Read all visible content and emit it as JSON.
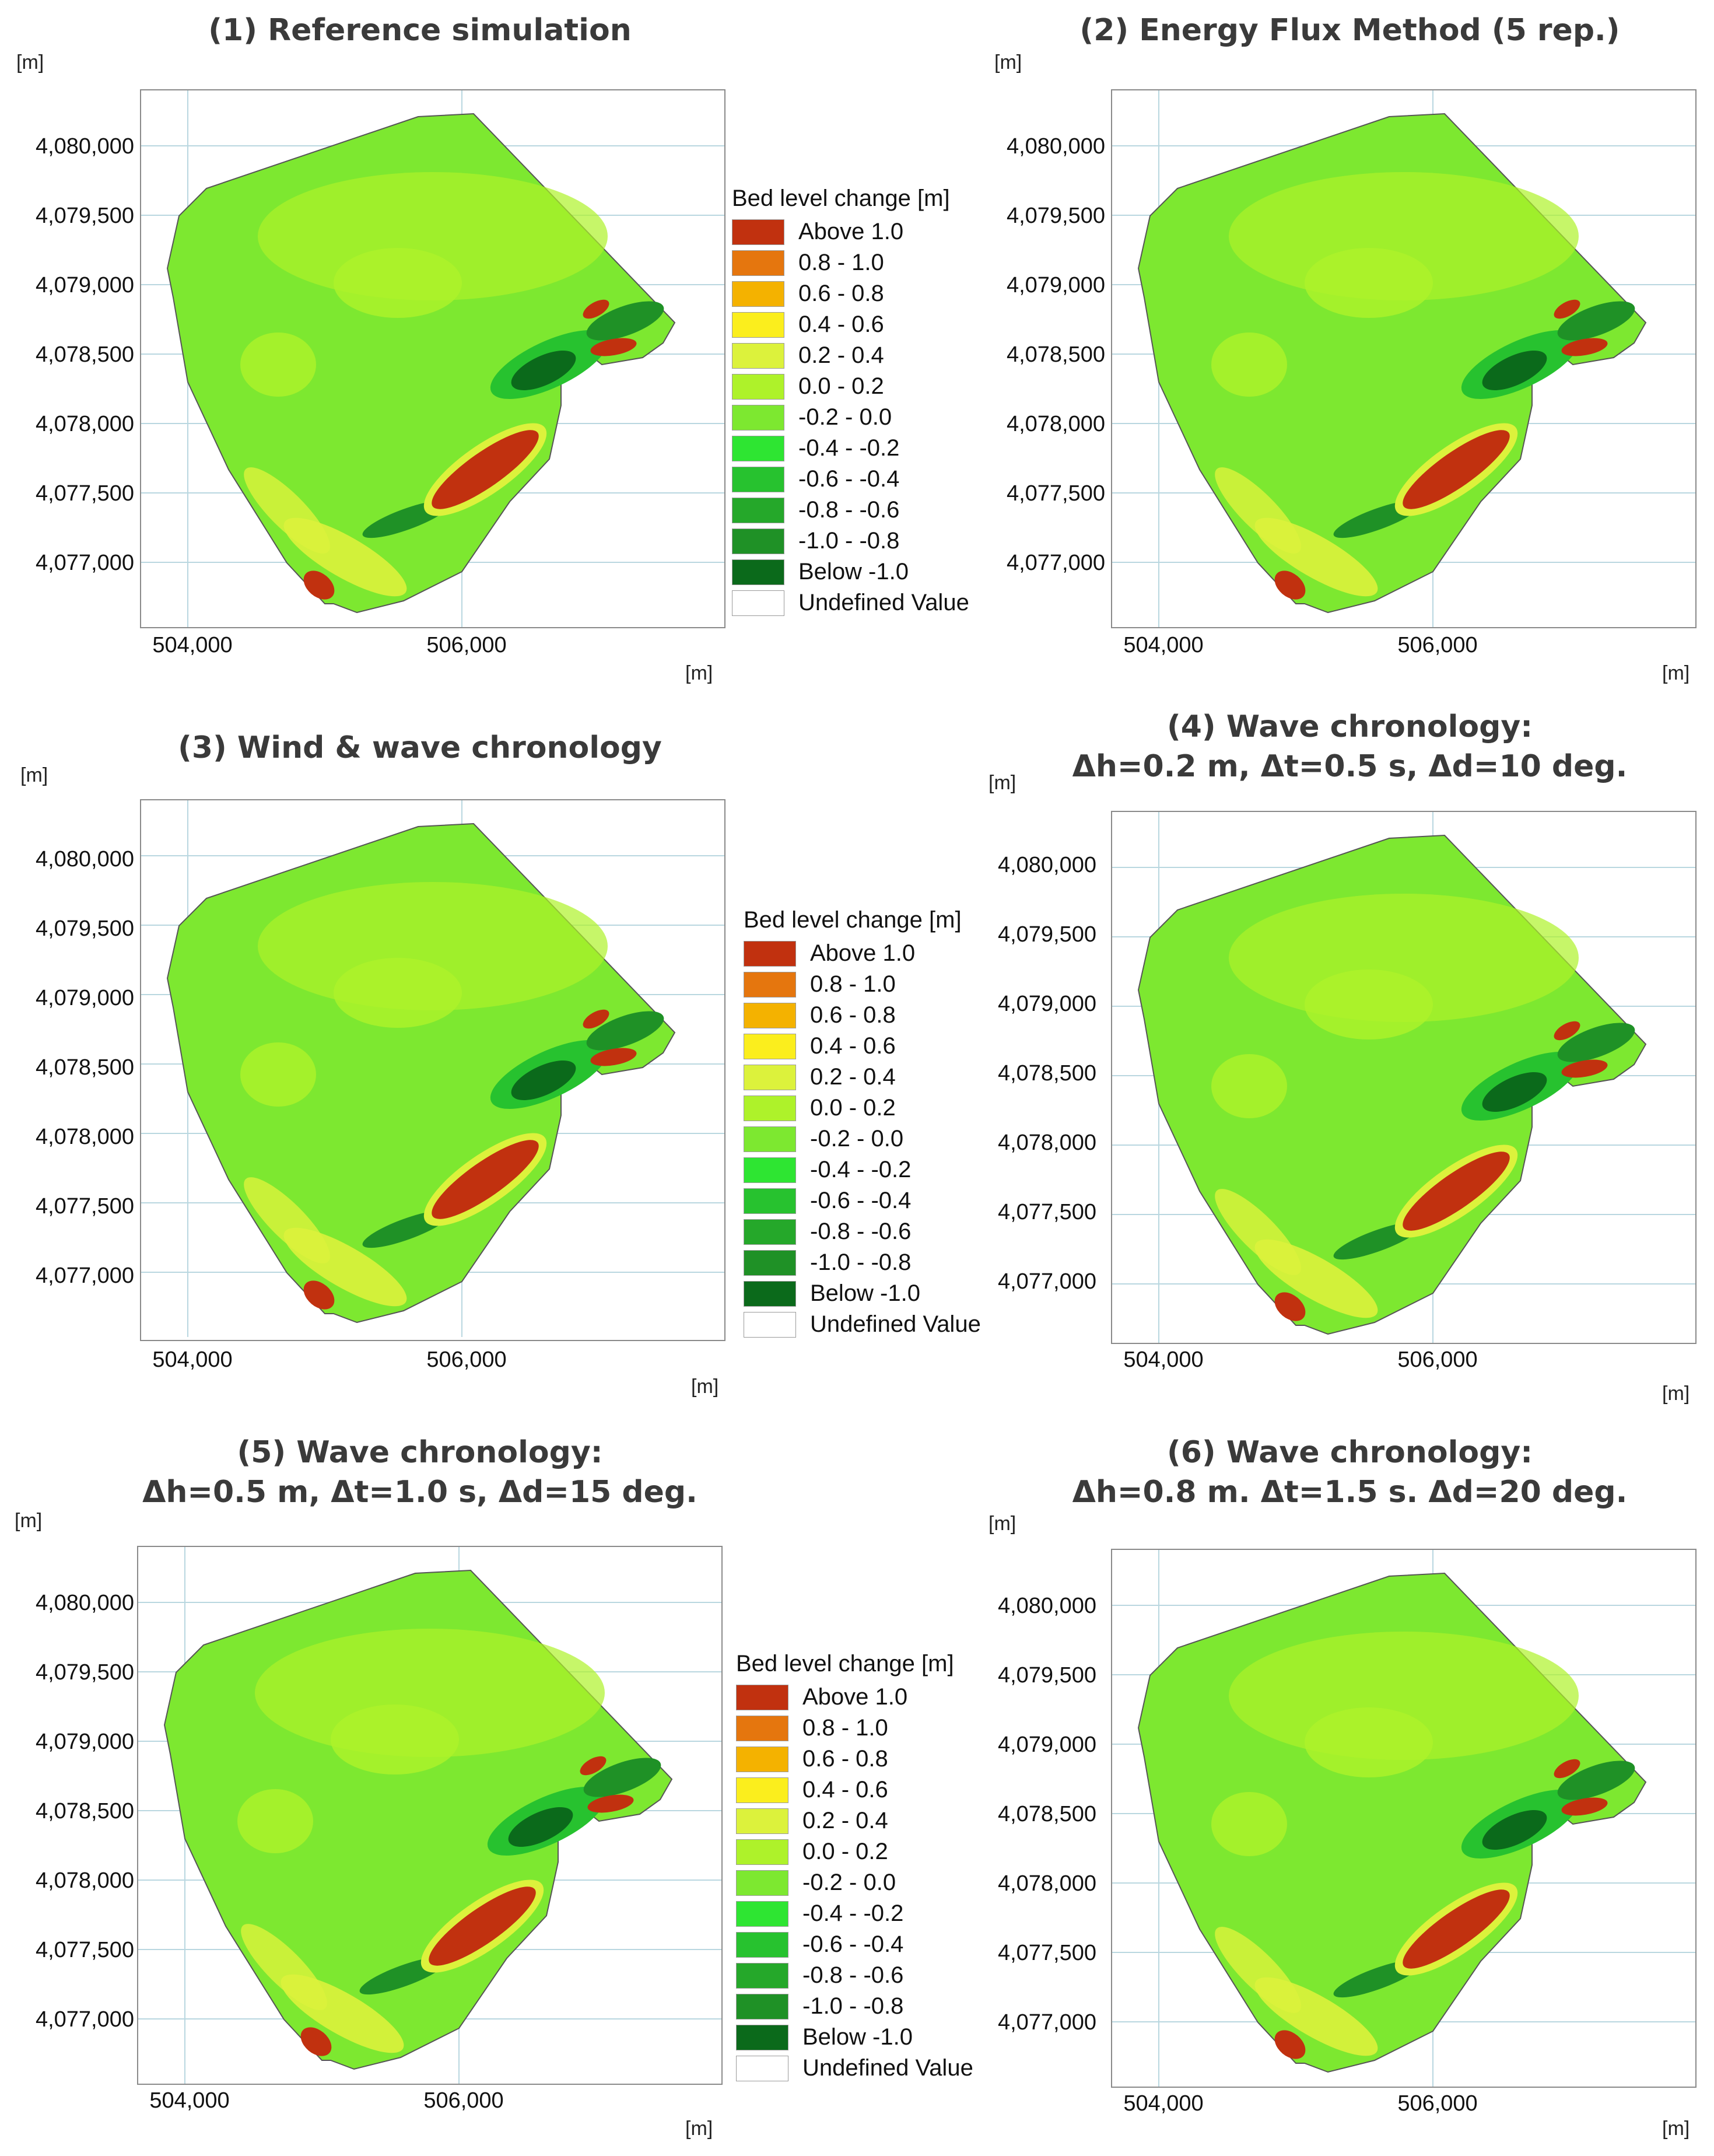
{
  "axis": {
    "unit_label": "[m]",
    "y_ticks": [
      "4,080,000",
      "4,079,500",
      "4,079,000",
      "4,078,500",
      "4,078,000",
      "4,077,500",
      "4,077,000"
    ],
    "x_ticks": [
      "504,000",
      "506,000"
    ]
  },
  "legend": {
    "title": "Bed level change [m]",
    "items": [
      {
        "label": "Above  1.0",
        "color": "#c1310f"
      },
      {
        "label": "0.8 -  1.0",
        "color": "#e5760e"
      },
      {
        "label": "0.6 -  0.8",
        "color": "#f4b200"
      },
      {
        "label": "0.4 -  0.6",
        "color": "#fbee1d"
      },
      {
        "label": "0.2 -  0.4",
        "color": "#dcf23c"
      },
      {
        "label": "0.0 -  0.2",
        "color": "#aef22a"
      },
      {
        "label": "-0.2 -  0.0",
        "color": "#7de830"
      },
      {
        "label": "-0.4 - -0.2",
        "color": "#2ee532"
      },
      {
        "label": "-0.6 - -0.4",
        "color": "#27c22f"
      },
      {
        "label": "-0.8 - -0.6",
        "color": "#25a82a"
      },
      {
        "label": "-1.0 - -0.8",
        "color": "#1f9126"
      },
      {
        "label": "Below -1.0",
        "color": "#0b6a1b"
      },
      {
        "label": "Undefined Value",
        "color": "#ffffff"
      }
    ]
  },
  "panels": [
    {
      "title_lines": [
        "(1) Reference simulation"
      ]
    },
    {
      "title_lines": [
        "(2) Energy Flux Method (5 rep.)"
      ]
    },
    {
      "title_lines": [
        "(3) Wind & wave chronology"
      ]
    },
    {
      "title_lines": [
        "(4) Wave chronology:",
        "Δh=0.2 m, Δt=0.5 s, Δd=10 deg."
      ]
    },
    {
      "title_lines": [
        "(5) Wave chronology:",
        "Δh=0.5 m, Δt=1.0 s, Δd=15 deg."
      ]
    },
    {
      "title_lines": [
        "(6) Wave chronology:",
        "Δh=0.8 m. Δt=1.5 s. Δd=20 deg."
      ]
    }
  ]
}
